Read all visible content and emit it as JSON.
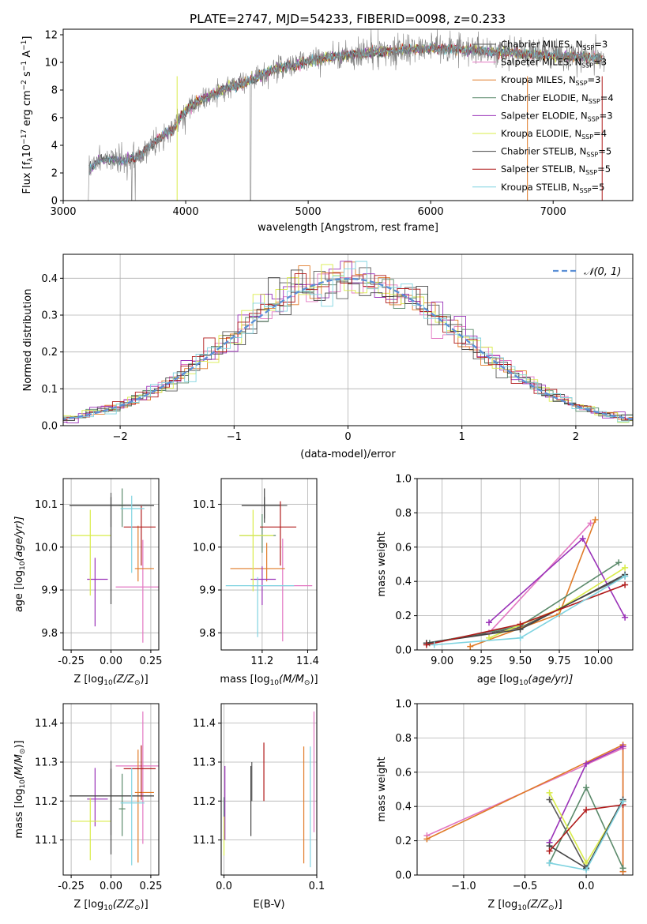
{
  "figure": {
    "title": "PLATE=2747, MJD=54233, FIBERID=0098, z=0.233"
  },
  "colors": {
    "Chabrier MILES": "#5a5a5a",
    "Salpeter MILES": "#e377c2",
    "Kroupa MILES": "#e07b28",
    "Chabrier ELODIE": "#5b8a6b",
    "Salpeter ELODIE": "#9a32b8",
    "Kroupa ELODIE": "#d9ec4a",
    "Chabrier STELIB": "#444444",
    "Salpeter STELIB": "#b01a1a",
    "Kroupa STELIB": "#7fd3e0",
    "data": "#7f7f7f",
    "normal": "#5b8fd6"
  },
  "chart_data": [
    {
      "id": "spectrum",
      "type": "line",
      "title": "PLATE=2747, MJD=54233, FIBERID=0098, z=0.233",
      "xlabel": "wavelength [Angstrom, rest frame]",
      "ylabel_main": "Flux [f",
      "ylabel_lambda": "λ",
      "ylabel_rest": "10",
      "ylabel_exp1": "−17",
      "ylabel_units": " erg cm",
      "ylabel_exp2": "−2",
      "ylabel_units2": " s",
      "ylabel_exp3": "−1",
      "ylabel_units3": " A",
      "ylabel_exp4": "−1",
      "ylabel_end": "]",
      "xlim": [
        3000,
        7650
      ],
      "ylim": [
        0,
        12.4
      ],
      "xticks": [
        3000,
        4000,
        5000,
        6000,
        7000
      ],
      "yticks": [
        0,
        2,
        4,
        6,
        8,
        10,
        12
      ],
      "continuum_x": [
        3200,
        3300,
        3400,
        3500,
        3600,
        3700,
        3800,
        3900,
        4000,
        4100,
        4200,
        4300,
        4400,
        4500,
        4600,
        4700,
        4800,
        4900,
        5000,
        5200,
        5400,
        5600,
        5800,
        6000,
        6200,
        6400,
        6600,
        6800,
        7000,
        7200,
        7400
      ],
      "continuum_y": [
        2.2,
        2.9,
        3.0,
        2.9,
        3.1,
        3.9,
        4.6,
        5.2,
        6.5,
        7.2,
        7.6,
        8.0,
        8.3,
        8.6,
        9.0,
        9.4,
        9.7,
        9.8,
        10.1,
        10.4,
        10.6,
        10.8,
        10.9,
        11.0,
        11.0,
        10.8,
        10.7,
        10.6,
        10.5,
        10.4,
        10.3
      ],
      "legend": [
        {
          "label": "Chabrier MILES, N",
          "sub": "SSP",
          "num": "=3"
        },
        {
          "label": "Salpeter MILES, N",
          "sub": "SSP",
          "num": "=3"
        },
        {
          "label": "Kroupa MILES, N",
          "sub": "SSP",
          "num": "=3"
        },
        {
          "label": "Chabrier ELODIE, N",
          "sub": "SSP",
          "num": "=4"
        },
        {
          "label": "Salpeter ELODIE, N",
          "sub": "SSP",
          "num": "=3"
        },
        {
          "label": "Kroupa ELODIE, N",
          "sub": "SSP",
          "num": "=4"
        },
        {
          "label": "Chabrier STELIB, N",
          "sub": "SSP",
          "num": "=5"
        },
        {
          "label": "Salpeter STELIB, N",
          "sub": "SSP",
          "num": "=5"
        },
        {
          "label": "Kroupa STELIB, N",
          "sub": "SSP",
          "num": "=5"
        }
      ]
    },
    {
      "id": "residuals",
      "type": "step",
      "xlabel": "(data-model)/error",
      "ylabel": "Normed distribution",
      "xlim": [
        -2.5,
        2.5
      ],
      "ylim": [
        0,
        0.465
      ],
      "xticks": [
        -2,
        -1,
        0,
        1,
        2
      ],
      "yticks": [
        0.0,
        0.1,
        0.2,
        0.3,
        0.4
      ],
      "grid": true,
      "bin_width": 0.1,
      "legend_label": "𝒩(0, 1)"
    },
    {
      "id": "age-vs-Z",
      "type": "errorbar",
      "xlabel_pre": "Z [log",
      "xlabel_sub": "10",
      "xlabel_post": "(Z/Z",
      "xlabel_end": ")]",
      "ylabel_pre": "age  [log",
      "ylabel_sub": "10",
      "ylabel_post": "(age/yr)]",
      "xlim": [
        -0.3,
        0.3
      ],
      "ylim": [
        9.76,
        10.16
      ],
      "xticks": [
        "-0.25",
        "0.00",
        "0.25"
      ],
      "xtick_values": [
        -0.25,
        0.0,
        0.25
      ],
      "yticks": [
        "9.8",
        "9.9",
        "10.0",
        "10.1"
      ],
      "ytick_values": [
        9.8,
        9.9,
        10.0,
        10.1
      ],
      "points": [
        {
          "model": "Chabrier MILES",
          "x": 0.0,
          "xerr": [
            0.26,
            0.27
          ],
          "y": 10.097,
          "yerr": [
            0.05,
            0.03
          ]
        },
        {
          "model": "Salpeter MILES",
          "x": 0.2,
          "xerr": [
            0.17,
            0.1
          ],
          "y": 9.907,
          "yerr": [
            0.13,
            0.11
          ]
        },
        {
          "model": "Kroupa MILES",
          "x": 0.17,
          "xerr": [
            0.02,
            0.1
          ],
          "y": 9.95,
          "yerr": [
            0.03,
            0.1
          ]
        },
        {
          "model": "Chabrier ELODIE",
          "x": 0.07,
          "xerr": [
            0.02,
            0.02
          ],
          "y": 10.097,
          "yerr": [
            0.05,
            0.04
          ]
        },
        {
          "model": "Salpeter ELODIE",
          "x": -0.1,
          "xerr": [
            0.05,
            0.08
          ],
          "y": 9.925,
          "yerr": [
            0.11,
            0.05
          ]
        },
        {
          "model": "Kroupa ELODIE",
          "x": -0.13,
          "xerr": [
            0.12,
            0.13
          ],
          "y": 10.027,
          "yerr": [
            0.14,
            0.06
          ]
        },
        {
          "model": "Chabrier STELIB",
          "x": 0.0,
          "xerr": [
            0.26,
            0.27
          ],
          "y": 10.097,
          "yerr": [
            0.23,
            0.02
          ]
        },
        {
          "model": "Salpeter STELIB",
          "x": 0.19,
          "xerr": [
            0.11,
            0.09
          ],
          "y": 10.047,
          "yerr": [
            0.09,
            0.05
          ]
        },
        {
          "model": "Kroupa STELIB",
          "x": 0.13,
          "xerr": [
            0.07,
            0.08
          ],
          "y": 10.09,
          "yerr": [
            0.15,
            0.03
          ]
        }
      ]
    },
    {
      "id": "age-vs-mass",
      "type": "errorbar",
      "xlabel_pre": "mass [log",
      "xlabel_sub": "10",
      "xlabel_post": "(M/M",
      "xlabel_end": ")]",
      "xlim": [
        11.02,
        11.44
      ],
      "ylim": [
        9.76,
        10.16
      ],
      "xticks": [
        "11.2",
        "11.4"
      ],
      "xtick_values": [
        11.2,
        11.4
      ],
      "yticks": [
        "9.8",
        "9.9",
        "10.0",
        "10.1"
      ],
      "ytick_values": [
        9.8,
        9.9,
        10.0,
        10.1
      ],
      "points": [
        {
          "model": "Chabrier MILES",
          "x": 11.21,
          "xerr": [
            0.1,
            0.1
          ],
          "y": 10.097,
          "yerr": [
            0.03,
            0.02
          ]
        },
        {
          "model": "Salpeter MILES",
          "x": 11.29,
          "xerr": [
            0.14,
            0.13
          ],
          "y": 9.91,
          "yerr": [
            0.13,
            0.11
          ]
        },
        {
          "model": "Kroupa MILES",
          "x": 11.22,
          "xerr": [
            0.16,
            0.08
          ],
          "y": 9.95,
          "yerr": [
            0.03,
            0.06
          ]
        },
        {
          "model": "Chabrier ELODIE",
          "x": 11.2,
          "xerr": [
            0.1,
            0.06
          ],
          "y": 10.027,
          "yerr": [
            0.04,
            0.05
          ]
        },
        {
          "model": "Salpeter ELODIE",
          "x": 11.2,
          "xerr": [
            0.05,
            0.06
          ],
          "y": 9.925,
          "yerr": [
            0.06,
            0.03
          ]
        },
        {
          "model": "Kroupa ELODIE",
          "x": 11.16,
          "xerr": [
            0.06,
            0.09
          ],
          "y": 10.027,
          "yerr": [
            0.13,
            0.06
          ]
        },
        {
          "model": "Chabrier STELIB",
          "x": 11.21,
          "xerr": [
            0.1,
            0.07
          ],
          "y": 10.097,
          "yerr": [
            0.04,
            0.04
          ]
        },
        {
          "model": "Salpeter STELIB",
          "x": 11.28,
          "xerr": [
            0.09,
            0.07
          ],
          "y": 10.047,
          "yerr": [
            0.09,
            0.06
          ]
        },
        {
          "model": "Kroupa STELIB",
          "x": 11.18,
          "xerr": [
            0.14,
            0.16
          ],
          "y": 9.91,
          "yerr": [
            0.12,
            0.02
          ]
        }
      ]
    },
    {
      "id": "weight-vs-age",
      "type": "line",
      "xlabel_pre": "age  [log",
      "xlabel_sub": "10",
      "xlabel_post": "(age/yr)]",
      "ylabel": "mass weight",
      "xlim": [
        8.84,
        10.22
      ],
      "ylim": [
        0,
        1
      ],
      "xticks": [
        "9.00",
        "9.25",
        "9.50",
        "9.75",
        "10.00"
      ],
      "xtick_values": [
        9.0,
        9.25,
        9.5,
        9.75,
        10.0
      ],
      "yticks": [
        "0.0",
        "0.2",
        "0.4",
        "0.6",
        "0.8",
        "1.0"
      ],
      "ytick_values": [
        0.0,
        0.2,
        0.4,
        0.6,
        0.8,
        1.0
      ],
      "series": [
        {
          "model": "Chabrier MILES",
          "x": [
            8.9,
            9.5,
            10.17
          ],
          "y": [
            0.04,
            0.13,
            0.43
          ]
        },
        {
          "model": "Salpeter MILES",
          "x": [
            9.3,
            9.95
          ],
          "y": [
            0.1,
            0.74
          ]
        },
        {
          "model": "Kroupa MILES",
          "x": [
            9.18,
            9.75,
            9.98
          ],
          "y": [
            0.02,
            0.21,
            0.76
          ]
        },
        {
          "model": "Chabrier ELODIE",
          "x": [
            8.92,
            9.5,
            10.13
          ],
          "y": [
            0.04,
            0.14,
            0.51
          ]
        },
        {
          "model": "Salpeter ELODIE",
          "x": [
            9.3,
            9.9,
            10.17
          ],
          "y": [
            0.16,
            0.65,
            0.19
          ]
        },
        {
          "model": "Kroupa ELODIE",
          "x": [
            9.3,
            9.75,
            10.17
          ],
          "y": [
            0.07,
            0.24,
            0.48
          ]
        },
        {
          "model": "Chabrier STELIB",
          "x": [
            8.9,
            9.5,
            10.17
          ],
          "y": [
            0.04,
            0.12,
            0.44
          ]
        },
        {
          "model": "Salpeter STELIB",
          "x": [
            8.9,
            9.5,
            10.17
          ],
          "y": [
            0.03,
            0.15,
            0.38
          ]
        },
        {
          "model": "Kroupa STELIB",
          "x": [
            8.95,
            9.5,
            10.17
          ],
          "y": [
            0.03,
            0.07,
            0.43
          ]
        }
      ]
    },
    {
      "id": "mass-vs-Z",
      "type": "errorbar",
      "xlabel_pre": "Z [log",
      "xlabel_sub": "10",
      "xlabel_post": "(Z/Z",
      "xlabel_end": ")]",
      "ylabel_pre": "mass [log",
      "ylabel_sub": "10",
      "ylabel_post": "(M/M",
      "ylabel_end": ")]",
      "xlim": [
        -0.3,
        0.3
      ],
      "ylim": [
        11.01,
        11.45
      ],
      "xticks": [
        "-0.25",
        "0.00",
        "0.25"
      ],
      "xtick_values": [
        -0.25,
        0.0,
        0.25
      ],
      "yticks": [
        "11.1",
        "11.2",
        "11.3",
        "11.4"
      ],
      "ytick_values": [
        11.1,
        11.2,
        11.3,
        11.4
      ],
      "points": [
        {
          "model": "Chabrier MILES",
          "x": 0.0,
          "xerr": [
            0.26,
            0.27
          ],
          "y": 11.213,
          "yerr": [
            0.1,
            0.09
          ]
        },
        {
          "model": "Salpeter MILES",
          "x": 0.2,
          "xerr": [
            0.17,
            0.1
          ],
          "y": 11.29,
          "yerr": [
            0.2,
            0.14
          ]
        },
        {
          "model": "Kroupa MILES",
          "x": 0.17,
          "xerr": [
            0.02,
            0.1
          ],
          "y": 11.222,
          "yerr": [
            0.18,
            0.11
          ]
        },
        {
          "model": "Chabrier ELODIE",
          "x": 0.07,
          "xerr": [
            0.02,
            0.02
          ],
          "y": 11.18,
          "yerr": [
            0.07,
            0.09
          ]
        },
        {
          "model": "Salpeter ELODIE",
          "x": -0.1,
          "xerr": [
            0.05,
            0.08
          ],
          "y": 11.205,
          "yerr": [
            0.07,
            0.08
          ]
        },
        {
          "model": "Kroupa ELODIE",
          "x": -0.13,
          "xerr": [
            0.12,
            0.13
          ],
          "y": 11.148,
          "yerr": [
            0.1,
            0.06
          ]
        },
        {
          "model": "Chabrier STELIB",
          "x": 0.0,
          "xerr": [
            0.26,
            0.27
          ],
          "y": 11.213,
          "yerr": [
            0.15,
            0.07
          ]
        },
        {
          "model": "Salpeter STELIB",
          "x": 0.19,
          "xerr": [
            0.11,
            0.09
          ],
          "y": 11.283,
          "yerr": [
            0.08,
            0.06
          ]
        },
        {
          "model": "Kroupa STELIB",
          "x": 0.13,
          "xerr": [
            0.07,
            0.08
          ],
          "y": 11.195,
          "yerr": [
            0.16,
            0.09
          ]
        }
      ]
    },
    {
      "id": "mass-vs-ebv",
      "type": "errorbar",
      "xlabel": "E(B-V)",
      "xlim": [
        -0.003,
        0.1
      ],
      "ylim": [
        11.01,
        11.45
      ],
      "xticks": [
        "0.0",
        "0.1"
      ],
      "xtick_values": [
        0.0,
        0.1
      ],
      "yticks": [
        "11.1",
        "11.2",
        "11.3",
        "11.4"
      ],
      "ytick_values": [
        11.1,
        11.2,
        11.3,
        11.4
      ],
      "points": [
        {
          "model": "Chabrier MILES",
          "x": 0.03,
          "y": 11.3,
          "yerr": [
            0.1,
            0.0
          ]
        },
        {
          "model": "Salpeter MILES",
          "x": 0.097,
          "y": 11.25,
          "yerr": [
            0.13,
            0.18
          ]
        },
        {
          "model": "Kroupa MILES",
          "x": 0.086,
          "y": 11.2,
          "yerr": [
            0.16,
            0.14
          ]
        },
        {
          "model": "Chabrier ELODIE",
          "x": 0.0,
          "y": 11.17,
          "yerr": [
            0.07,
            0.04
          ]
        },
        {
          "model": "Salpeter ELODIE",
          "x": 0.001,
          "y": 11.2,
          "yerr": [
            0.1,
            0.09
          ]
        },
        {
          "model": "Kroupa ELODIE",
          "x": 0.0,
          "y": 11.12,
          "yerr": [
            0.06,
            0.04
          ]
        },
        {
          "model": "Chabrier STELIB",
          "x": 0.029,
          "y": 11.21,
          "yerr": [
            0.1,
            0.08
          ]
        },
        {
          "model": "Salpeter STELIB",
          "x": 0.043,
          "y": 11.27,
          "yerr": [
            0.07,
            0.08
          ]
        },
        {
          "model": "Kroupa STELIB",
          "x": 0.093,
          "y": 11.2,
          "yerr": [
            0.17,
            0.14
          ]
        }
      ]
    },
    {
      "id": "weight-vs-Z",
      "type": "line",
      "xlabel_pre": "Z [log",
      "xlabel_sub": "10",
      "xlabel_post": "(Z/Z",
      "xlabel_end": ")]",
      "ylabel": "mass weight",
      "xlim": [
        -1.38,
        0.38
      ],
      "ylim": [
        0,
        1
      ],
      "xticks": [
        "−1.0",
        "−0.5",
        "0.0"
      ],
      "xtick_values": [
        -1.0,
        -0.5,
        0.0
      ],
      "yticks": [
        "0.0",
        "0.2",
        "0.4",
        "0.6",
        "0.8",
        "1.0"
      ],
      "ytick_values": [
        0.0,
        0.2,
        0.4,
        0.6,
        0.8,
        1.0
      ],
      "series": [
        {
          "model": "Chabrier MILES",
          "x": [
            -0.3,
            0.0,
            0.3
          ],
          "y": [
            0.44,
            0.04,
            0.43
          ]
        },
        {
          "model": "Salpeter MILES",
          "x": [
            -1.3,
            0.3,
            0.3
          ],
          "y": [
            0.23,
            0.74,
            0.02
          ]
        },
        {
          "model": "Kroupa MILES",
          "x": [
            -1.3,
            0.3,
            0.3
          ],
          "y": [
            0.21,
            0.76,
            0.02
          ]
        },
        {
          "model": "Chabrier ELODIE",
          "x": [
            -0.3,
            0.0,
            0.3
          ],
          "y": [
            0.07,
            0.51,
            0.04
          ]
        },
        {
          "model": "Salpeter ELODIE",
          "x": [
            -0.3,
            0.0,
            0.3
          ],
          "y": [
            0.19,
            0.65,
            0.75
          ]
        },
        {
          "model": "Kroupa ELODIE",
          "x": [
            -0.3,
            0.0,
            0.3
          ],
          "y": [
            0.48,
            0.07,
            0.43
          ]
        },
        {
          "model": "Chabrier STELIB",
          "x": [
            -0.3,
            0.0,
            0.3
          ],
          "y": [
            0.17,
            0.04,
            0.44
          ]
        },
        {
          "model": "Salpeter STELIB",
          "x": [
            -0.3,
            0.0,
            0.3
          ],
          "y": [
            0.14,
            0.38,
            0.41
          ]
        },
        {
          "model": "Kroupa STELIB",
          "x": [
            -0.3,
            0.0,
            0.3
          ],
          "y": [
            0.07,
            0.03,
            0.43
          ]
        }
      ]
    }
  ]
}
